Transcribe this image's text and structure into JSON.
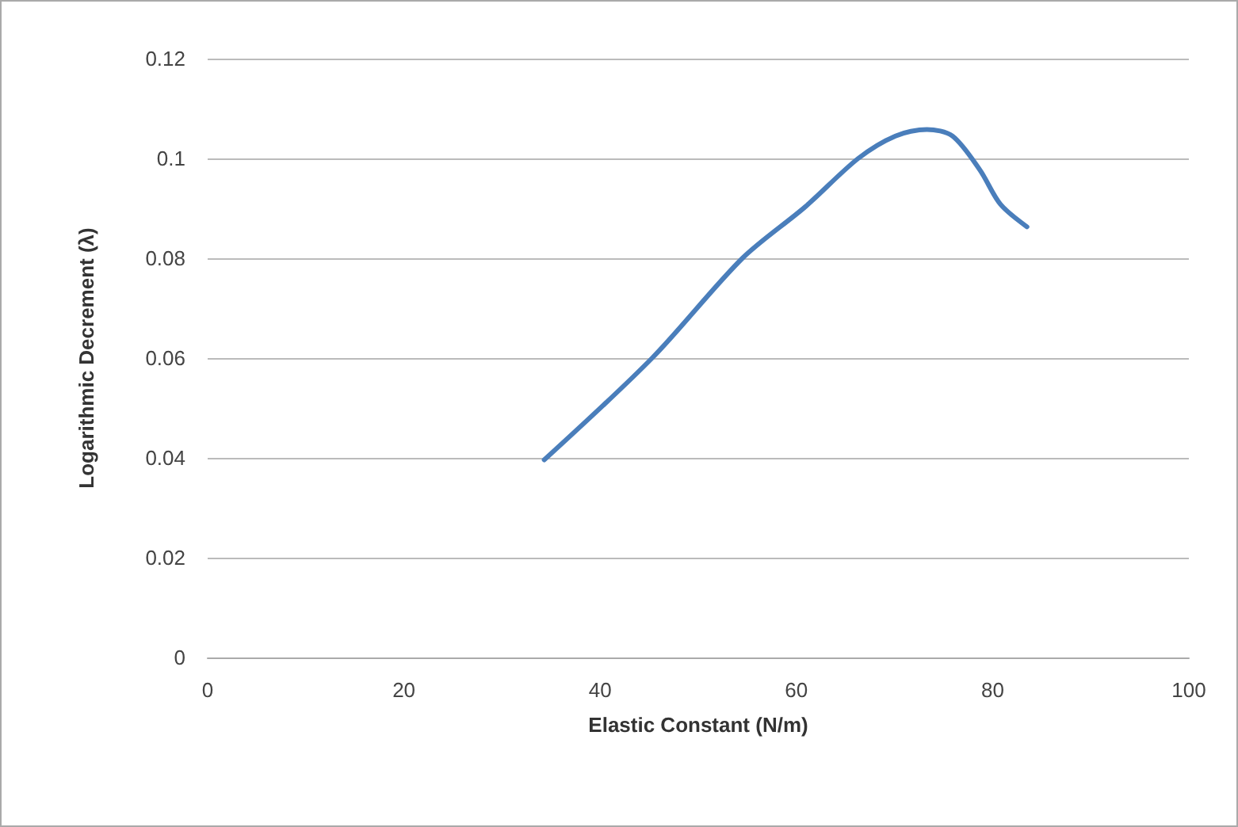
{
  "chart_data": {
    "type": "line",
    "xlabel": "Elastic Constant (N/m)",
    "ylabel": "Logarithmic Decrement (λ)",
    "series": [
      {
        "color": "#4a7ebb",
        "x": [
          34.3,
          45.3,
          54.5,
          60.9,
          66.3,
          70.1,
          73.3,
          75.9,
          78.7,
          80.8,
          83.5
        ],
        "values": [
          0.0396,
          0.06,
          0.08,
          0.0903,
          0.1,
          0.1045,
          0.1058,
          0.1045,
          0.0977,
          0.0908,
          0.0863
        ]
      }
    ],
    "xlim": [
      0,
      100
    ],
    "xticks": [
      0,
      20,
      40,
      60,
      80,
      100
    ],
    "ylim": [
      0,
      0.12
    ],
    "yticks": [
      0,
      0.02,
      0.04,
      0.06,
      0.08,
      0.1,
      0.12
    ],
    "grid": "y",
    "marker": "none",
    "line_style": "solid"
  }
}
